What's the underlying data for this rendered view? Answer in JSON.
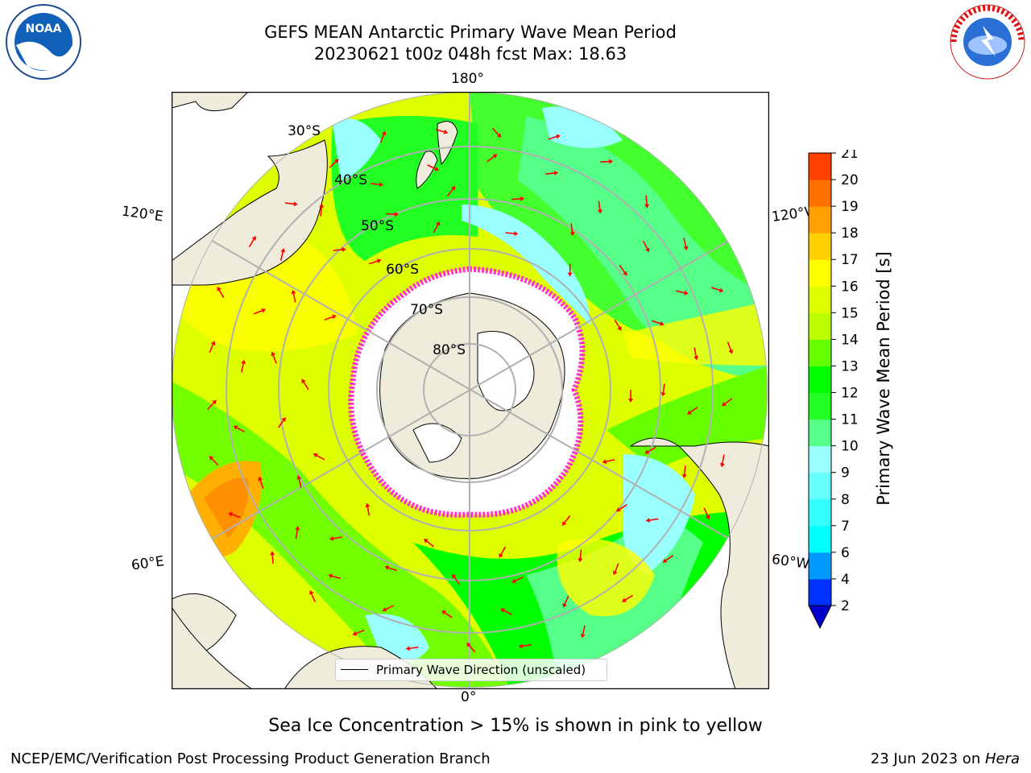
{
  "header": {
    "title_line1": "GEFS MEAN Antarctic Primary Wave Mean Period",
    "title_line2": "20230621 t00z 048h fcst   Max: 18.63"
  },
  "logos": {
    "left": "noaa-logo",
    "right": "national-weather-service-logo",
    "left_text": "NOAA",
    "right_text": "NATIONAL WEATHER SERVICE"
  },
  "map": {
    "projection": "south-polar-stereographic",
    "longitude_labels": {
      "top": "180°",
      "bottom": "0°",
      "upper_left": "120°E",
      "upper_right": "120°W",
      "lower_left": "60°E",
      "lower_right": "60°W"
    },
    "latitude_labels": [
      "30°S",
      "40°S",
      "50°S",
      "60°S",
      "70°S",
      "80°S"
    ],
    "legend": "Primary Wave Direction (unscaled)",
    "colors": {
      "land": "#efecdc",
      "ice": "#ffffff",
      "ice_edge": "#ff33cc",
      "arrow": "#ff0000",
      "grid": "#b0b0b0"
    }
  },
  "colorbar": {
    "label": "Primary Wave Mean Period [s]",
    "ticks": [
      "2",
      "4",
      "6",
      "7",
      "8",
      "9",
      "10",
      "11",
      "12",
      "13",
      "14",
      "15",
      "16",
      "17",
      "18",
      "19",
      "20",
      "21"
    ],
    "colors": [
      "#0033ff",
      "#0099ff",
      "#00ffff",
      "#33ffff",
      "#66ffff",
      "#99ffff",
      "#55ff88",
      "#22ff22",
      "#00ff00",
      "#66ff00",
      "#bbff00",
      "#ddff00",
      "#ffff00",
      "#ffd000",
      "#ffa000",
      "#ff7000",
      "#ff4000",
      "#ff0000"
    ],
    "extend_color": "#0000cc"
  },
  "notes": {
    "sea_ice": "Sea Ice Concentration > 15% is shown in pink to yellow",
    "footer_left": "NCEP/EMC/Verification Post Processing Product Generation Branch",
    "footer_right_prefix": "23 Jun 2023 on ",
    "footer_right_machine": "Hera"
  }
}
